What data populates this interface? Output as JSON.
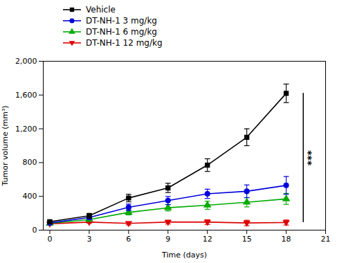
{
  "chart_data": {
    "type": "line",
    "x": [
      0,
      3,
      6,
      9,
      12,
      15,
      18
    ],
    "series": [
      {
        "name": "Vehicle",
        "color": "#000000",
        "marker": "square",
        "values": [
          100,
          170,
          380,
          500,
          770,
          1100,
          1620
        ],
        "error": [
          18,
          28,
          45,
          55,
          75,
          100,
          110
        ]
      },
      {
        "name": "DT-NH-1  3 mg/kg",
        "color": "#0000dd",
        "marker": "circle",
        "values": [
          85,
          150,
          270,
          350,
          430,
          460,
          530
        ],
        "error": [
          12,
          22,
          38,
          48,
          55,
          75,
          105
        ]
      },
      {
        "name": "DT-NH-1  6 mg/kg",
        "color": "#00aa00",
        "marker": "triangle_up",
        "values": [
          80,
          125,
          210,
          265,
          295,
          330,
          370
        ],
        "error": [
          10,
          18,
          30,
          38,
          48,
          55,
          65
        ]
      },
      {
        "name": "DT-NH-1  12 mg/kg",
        "color": "#dd0000",
        "marker": "triangle_down",
        "values": [
          75,
          95,
          80,
          95,
          95,
          85,
          90
        ],
        "error": [
          8,
          12,
          18,
          22,
          28,
          32,
          30
        ]
      }
    ],
    "xlabel": "Time (days)",
    "ylabel": "Tumor volume (mm³)",
    "xlim": [
      -0.5,
      21
    ],
    "ylim": [
      0,
      2000
    ],
    "xticks": [
      0,
      3,
      6,
      9,
      12,
      15,
      18,
      21
    ],
    "yticks": [
      0,
      400,
      800,
      1200,
      1600,
      2000
    ],
    "grid": false,
    "legend": "top",
    "annotations": [
      {
        "text": "***",
        "x": 19.3,
        "y_from": 90,
        "y_to": 1620
      }
    ]
  }
}
